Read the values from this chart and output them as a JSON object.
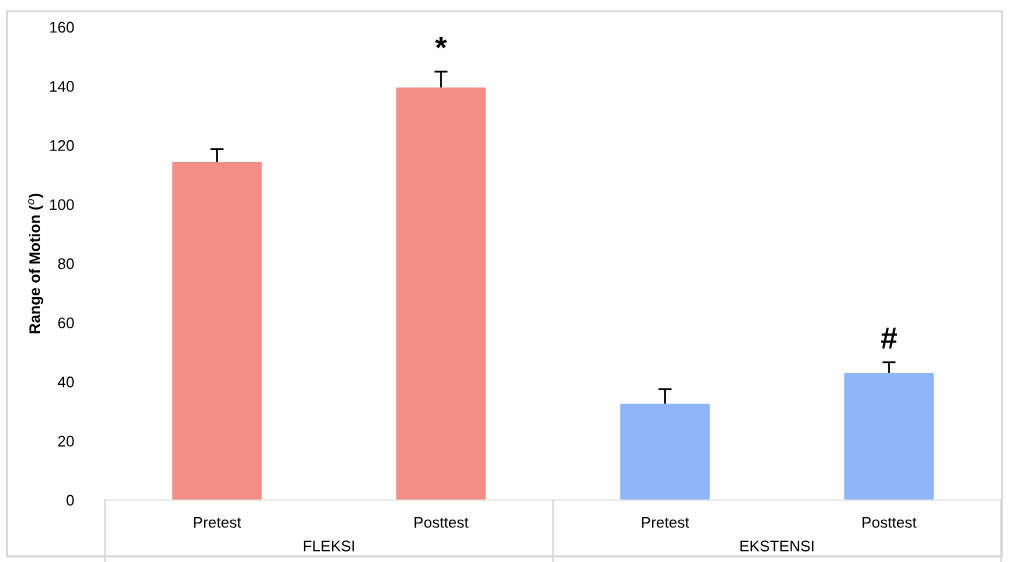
{
  "chart_data": {
    "type": "bar",
    "ylabel": "Range of Motion ($^{o}$)",
    "categories": [
      "Pretest",
      "Posttest",
      "Pretest",
      "Posttest"
    ],
    "values": [
      114.3,
      139.5,
      32.6,
      43
    ],
    "colors": [
      "#f28e86",
      "#f28e86",
      "#8fb6f9",
      "#8fb6f9"
    ],
    "errors": [
      [
        114.3,
        118.7
      ],
      [
        139.5,
        144.9
      ],
      [
        32.6,
        37.5
      ],
      [
        43,
        46.6
      ]
    ],
    "value_labels": [
      null,
      "*",
      null,
      "#"
    ],
    "annotations": [
      "FLEKSI",
      "EKSTENSI"
    ],
    "ylim": [
      0,
      160
    ],
    "yticks": [
      0,
      20,
      40,
      60,
      80,
      100,
      120,
      140,
      160
    ],
    "grid": false
  }
}
